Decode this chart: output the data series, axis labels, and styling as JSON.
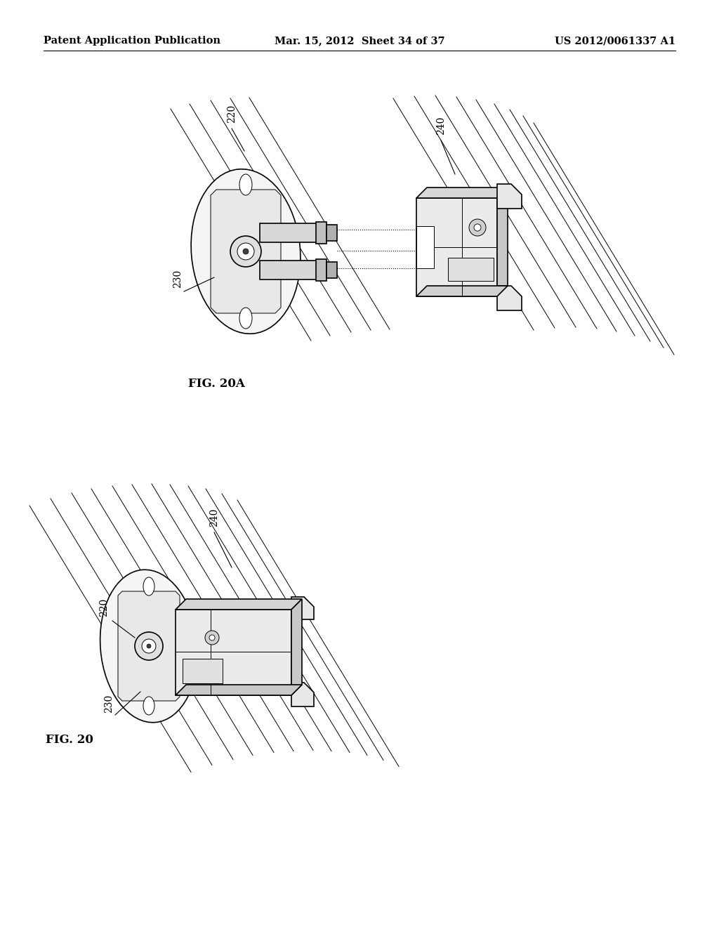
{
  "background_color": "#ffffff",
  "header_left": "Patent Application Publication",
  "header_center": "Mar. 15, 2012  Sheet 34 of 37",
  "header_right": "US 2012/0061337 A1",
  "header_fontsize": 10.5,
  "fig20A_label": "FIG. 20A",
  "fig20_label": "FIG. 20",
  "lc": "#000000",
  "lw": 1.2,
  "tlw": 0.7,
  "rail_color": "#000000",
  "component_face": "#f0f0f0",
  "component_dark": "#d0d0d0",
  "component_darker": "#b8b8b8",
  "dotted_lw": 0.8
}
